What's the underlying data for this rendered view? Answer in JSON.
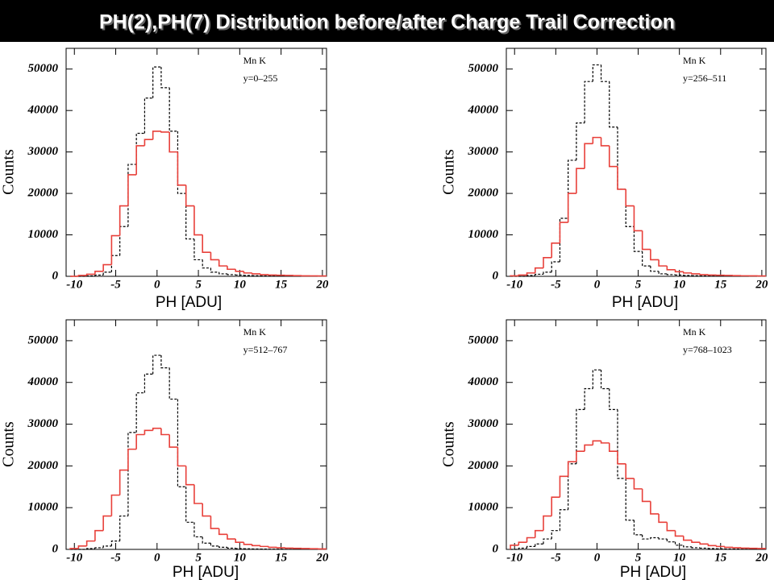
{
  "title": "PH(2),PH(7) Distribution before/after Charge Trail Correction",
  "chart_data": [
    {
      "type": "histogram",
      "xlabel": "PH [ADU]",
      "ylabel": "Counts",
      "annotations": [
        "Mn K",
        "y=0–255"
      ],
      "bins": [
        -10.5,
        -9.5,
        -8.5,
        -7.5,
        -6.5,
        -5.5,
        -4.5,
        -3.5,
        -2.5,
        -1.5,
        -0.5,
        0.5,
        1.5,
        2.5,
        3.5,
        4.5,
        5.5,
        6.5,
        7.5,
        8.5,
        9.5,
        10.5,
        11.5,
        12.5,
        13.5,
        14.5,
        15.5,
        16.5,
        17.5,
        18.5,
        19.5,
        20.5
      ],
      "xlim": [
        -11,
        20.5
      ],
      "ylim": [
        0,
        55000
      ],
      "xticks": [
        -10,
        -5,
        0,
        5,
        10,
        15,
        20
      ],
      "yticks": [
        0,
        10000,
        20000,
        30000,
        40000,
        50000
      ],
      "series": [
        {
          "color": "#000000",
          "dashed": true,
          "values": [
            0,
            0,
            100,
            300,
            1000,
            5000,
            12000,
            27000,
            34500,
            43000,
            50500,
            45500,
            35000,
            20000,
            9000,
            4000,
            2000,
            1000,
            600,
            400,
            300,
            200,
            150,
            100,
            80,
            60,
            50,
            40,
            30,
            20,
            20
          ]
        },
        {
          "color": "#e8403a",
          "dashed": false,
          "values": [
            0,
            200,
            500,
            1200,
            2800,
            9800,
            17000,
            24500,
            31500,
            33000,
            35000,
            34800,
            30000,
            22000,
            17000,
            10000,
            5800,
            4000,
            2500,
            1700,
            1200,
            800,
            600,
            400,
            300,
            250,
            200,
            150,
            100,
            100,
            80
          ]
        }
      ]
    },
    {
      "type": "histogram",
      "xlabel": "PH [ADU]",
      "ylabel": "Counts",
      "annotations": [
        "Mn K",
        "y=256–511"
      ],
      "bins": [
        -10.5,
        -9.5,
        -8.5,
        -7.5,
        -6.5,
        -5.5,
        -4.5,
        -3.5,
        -2.5,
        -1.5,
        -0.5,
        0.5,
        1.5,
        2.5,
        3.5,
        4.5,
        5.5,
        6.5,
        7.5,
        8.5,
        9.5,
        10.5,
        11.5,
        12.5,
        13.5,
        14.5,
        15.5,
        16.5,
        17.5,
        18.5,
        19.5,
        20.5
      ],
      "xlim": [
        -11,
        20.5
      ],
      "ylim": [
        0,
        55000
      ],
      "xticks": [
        -10,
        -5,
        0,
        5,
        10,
        15,
        20
      ],
      "yticks": [
        0,
        10000,
        20000,
        30000,
        40000,
        50000
      ],
      "series": [
        {
          "color": "#000000",
          "dashed": true,
          "values": [
            0,
            0,
            200,
            500,
            1000,
            3500,
            14000,
            28000,
            37000,
            47000,
            51000,
            47000,
            36000,
            21000,
            12000,
            6000,
            2500,
            1200,
            600,
            400,
            300,
            200,
            150,
            100,
            80,
            60,
            50,
            40,
            30,
            20,
            20
          ]
        },
        {
          "color": "#e8403a",
          "dashed": false,
          "values": [
            100,
            300,
            800,
            2000,
            4500,
            8000,
            13000,
            20000,
            26000,
            32000,
            33500,
            31500,
            26500,
            21000,
            17000,
            11000,
            6500,
            4000,
            2500,
            1600,
            1100,
            800,
            600,
            400,
            300,
            250,
            200,
            150,
            120,
            100,
            80
          ]
        }
      ]
    },
    {
      "type": "histogram",
      "xlabel": "PH [ADU]",
      "ylabel": "Counts",
      "annotations": [
        "Mn K",
        "y=512–767"
      ],
      "bins": [
        -10.5,
        -9.5,
        -8.5,
        -7.5,
        -6.5,
        -5.5,
        -4.5,
        -3.5,
        -2.5,
        -1.5,
        -0.5,
        0.5,
        1.5,
        2.5,
        3.5,
        4.5,
        5.5,
        6.5,
        7.5,
        8.5,
        9.5,
        10.5,
        11.5,
        12.5,
        13.5,
        14.5,
        15.5,
        16.5,
        17.5,
        18.5,
        19.5,
        20.5
      ],
      "xlim": [
        -11,
        20.5
      ],
      "ylim": [
        0,
        55000
      ],
      "xticks": [
        -10,
        -5,
        0,
        5,
        10,
        15,
        20
      ],
      "yticks": [
        0,
        10000,
        20000,
        30000,
        40000,
        50000
      ],
      "series": [
        {
          "color": "#000000",
          "dashed": true,
          "values": [
            0,
            0,
            200,
            400,
            800,
            2000,
            8000,
            28000,
            37500,
            42000,
            46500,
            43500,
            36000,
            15000,
            6500,
            3000,
            1500,
            800,
            500,
            300,
            200,
            150,
            100,
            80,
            60,
            50,
            40,
            30,
            20,
            20,
            10
          ]
        },
        {
          "color": "#e8403a",
          "dashed": false,
          "values": [
            200,
            800,
            2000,
            4500,
            8000,
            13000,
            19000,
            24000,
            27500,
            28500,
            29000,
            27500,
            24500,
            20000,
            15500,
            11000,
            8000,
            5000,
            3600,
            2500,
            1700,
            1200,
            900,
            700,
            500,
            400,
            300,
            250,
            200,
            150,
            100
          ]
        }
      ]
    },
    {
      "type": "histogram",
      "xlabel": "PH [ADU]",
      "ylabel": "Counts",
      "annotations": [
        "Mn K",
        "y=768–1023"
      ],
      "bins": [
        -10.5,
        -9.5,
        -8.5,
        -7.5,
        -6.5,
        -5.5,
        -4.5,
        -3.5,
        -2.5,
        -1.5,
        -0.5,
        0.5,
        1.5,
        2.5,
        3.5,
        4.5,
        5.5,
        6.5,
        7.5,
        8.5,
        9.5,
        10.5,
        11.5,
        12.5,
        13.5,
        14.5,
        15.5,
        16.5,
        17.5,
        18.5,
        19.5,
        20.5
      ],
      "xlim": [
        -11,
        20.5
      ],
      "ylim": [
        0,
        55000
      ],
      "xticks": [
        -10,
        -5,
        0,
        5,
        10,
        15,
        20
      ],
      "yticks": [
        0,
        10000,
        20000,
        30000,
        40000,
        50000
      ],
      "series": [
        {
          "color": "#000000",
          "dashed": true,
          "values": [
            0,
            300,
            700,
            1300,
            2500,
            4500,
            9500,
            20500,
            33500,
            38500,
            43000,
            38500,
            33500,
            17000,
            7000,
            3500,
            2500,
            2800,
            2500,
            1800,
            1000,
            600,
            400,
            300,
            200,
            150,
            100,
            80,
            60,
            40,
            30
          ]
        },
        {
          "color": "#e8403a",
          "dashed": false,
          "values": [
            1000,
            1700,
            2800,
            4500,
            8000,
            12500,
            17500,
            21000,
            23500,
            25000,
            26000,
            25500,
            23500,
            20500,
            17000,
            14500,
            11500,
            8500,
            6500,
            4500,
            3200,
            2200,
            1700,
            1300,
            900,
            700,
            500,
            400,
            300,
            250,
            200
          ]
        }
      ]
    }
  ]
}
